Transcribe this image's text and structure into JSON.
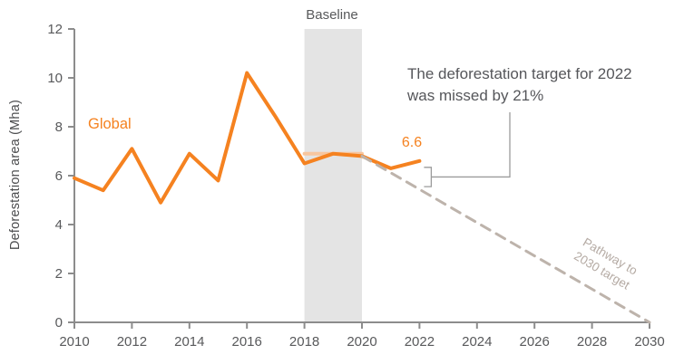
{
  "chart_data": {
    "type": "line",
    "title": "",
    "ylabel": "Deforestation area (Mha)",
    "xlabel": "",
    "ylim": [
      0,
      12
    ],
    "xlim": [
      2010,
      2030
    ],
    "y_ticks": [
      0,
      2,
      4,
      6,
      8,
      10,
      12
    ],
    "x_ticks": [
      2010,
      2012,
      2014,
      2016,
      2018,
      2020,
      2022,
      2024,
      2026,
      2028,
      2030
    ],
    "grid": false,
    "legend": "none",
    "series": [
      {
        "name": "Global",
        "color": "#F58220",
        "style": "solid",
        "x": [
          2010,
          2011,
          2012,
          2013,
          2014,
          2015,
          2016,
          2017,
          2018,
          2019,
          2020,
          2021,
          2022
        ],
        "values": [
          5.9,
          5.4,
          7.1,
          4.9,
          6.9,
          5.8,
          10.2,
          8.4,
          6.5,
          6.9,
          6.8,
          6.3,
          6.6
        ]
      },
      {
        "name": "Pathway to 2030 target",
        "color": "#BDB3AB",
        "style": "dashed",
        "x": [
          2020,
          2030
        ],
        "values": [
          6.8,
          0
        ]
      }
    ],
    "baseline_band": {
      "label": "Baseline",
      "x_start": 2018,
      "x_end": 2020,
      "color": "#E4E4E4"
    },
    "baseline_average": {
      "x_start": 2018,
      "x_end": 2020,
      "value": 6.9,
      "color": "#F7C69F"
    },
    "annotations": {
      "series_label": "Global",
      "endpoint_value_label": "6.6",
      "callout_text": "The deforestation target for 2022 was missed by 21%",
      "pathway_label_line1": "Pathway to",
      "pathway_label_line2": "2030 target",
      "callout_year": 2022
    },
    "axis_color": "#8C8C8C",
    "text_color": "#58595B"
  }
}
